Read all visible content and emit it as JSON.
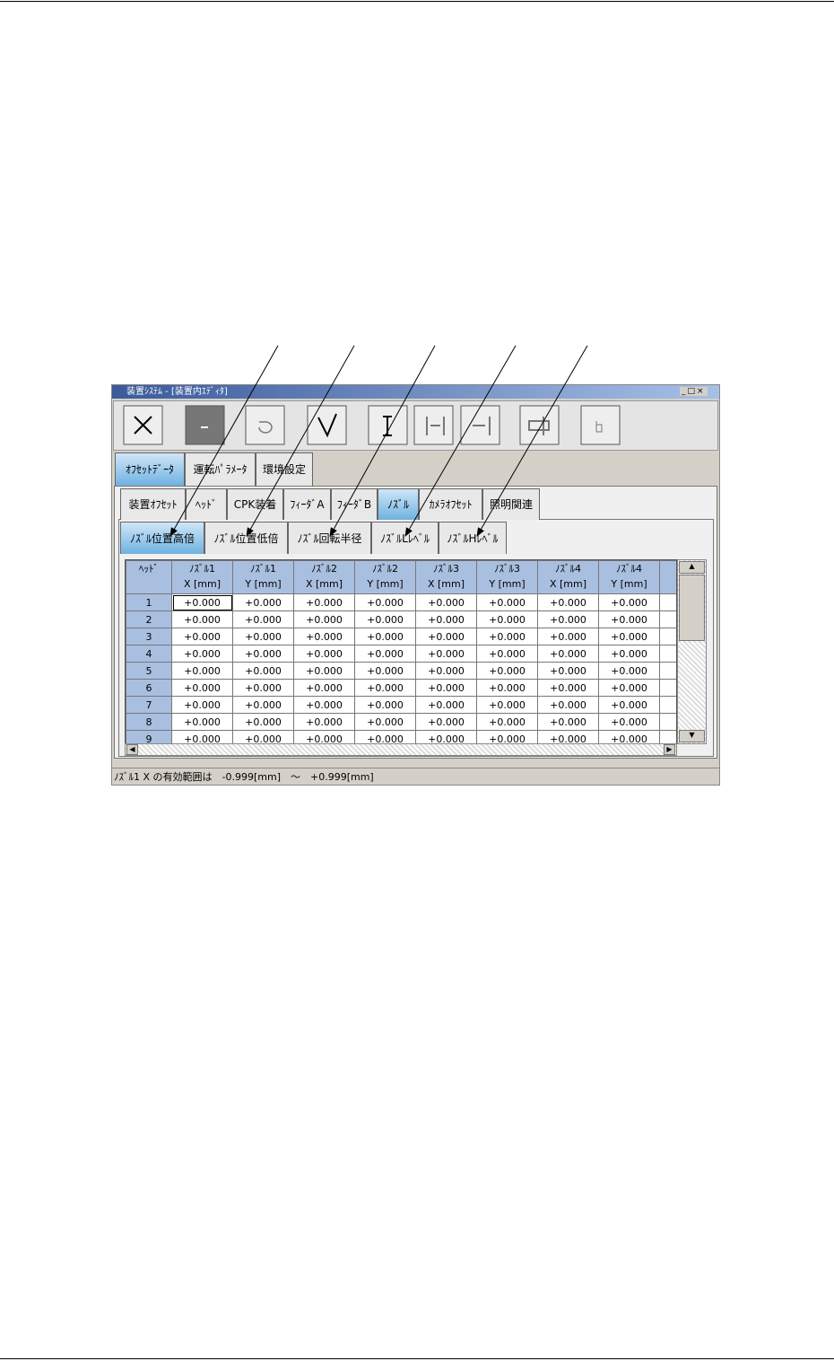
{
  "window": {
    "title": "装置ｼｽﾃﾑ - [装置内ｴﾃﾞｨﾀ]"
  },
  "tabs": {
    "level1": [
      "ｵﾌｾｯﾄﾃﾞｰﾀ",
      "運転ﾊﾟﾗﾒｰﾀ",
      "環境設定"
    ],
    "level2": [
      "装置ｵﾌｾｯﾄ",
      "ﾍｯﾄﾞ",
      "CPK装着",
      "ﾌｨｰﾀﾞA",
      "ﾌｨｰﾀﾞB",
      "ﾉｽﾞﾙ",
      "ｶﾒﾗｵﾌｾｯﾄ",
      "照明関連"
    ],
    "level3": [
      "ﾉｽﾞﾙ位置高倍",
      "ﾉｽﾞﾙ位置低倍",
      "ﾉｽﾞﾙ回転半径",
      "ﾉｽﾞﾙLﾚﾍﾞﾙ",
      "ﾉｽﾞﾙHﾚﾍﾞﾙ"
    ]
  },
  "table": {
    "header": [
      {
        "name": "ﾍｯﾄﾞ"
      },
      {
        "name": "ﾉｽﾞﾙ1",
        "unit": "X [mm]"
      },
      {
        "name": "ﾉｽﾞﾙ1",
        "unit": "Y [mm]"
      },
      {
        "name": "ﾉｽﾞﾙ2",
        "unit": "X [mm]"
      },
      {
        "name": "ﾉｽﾞﾙ2",
        "unit": "Y [mm]"
      },
      {
        "name": "ﾉｽﾞﾙ3",
        "unit": "X [mm]"
      },
      {
        "name": "ﾉｽﾞﾙ3",
        "unit": "Y [mm]"
      },
      {
        "name": "ﾉｽﾞﾙ4",
        "unit": "X [mm]"
      },
      {
        "name": "ﾉｽﾞﾙ4",
        "unit": "Y [mm]"
      }
    ],
    "rows": [
      [
        "1",
        "+0.000",
        "+0.000",
        "+0.000",
        "+0.000",
        "+0.000",
        "+0.000",
        "+0.000",
        "+0.000"
      ],
      [
        "2",
        "+0.000",
        "+0.000",
        "+0.000",
        "+0.000",
        "+0.000",
        "+0.000",
        "+0.000",
        "+0.000"
      ],
      [
        "3",
        "+0.000",
        "+0.000",
        "+0.000",
        "+0.000",
        "+0.000",
        "+0.000",
        "+0.000",
        "+0.000"
      ],
      [
        "4",
        "+0.000",
        "+0.000",
        "+0.000",
        "+0.000",
        "+0.000",
        "+0.000",
        "+0.000",
        "+0.000"
      ],
      [
        "5",
        "+0.000",
        "+0.000",
        "+0.000",
        "+0.000",
        "+0.000",
        "+0.000",
        "+0.000",
        "+0.000"
      ],
      [
        "6",
        "+0.000",
        "+0.000",
        "+0.000",
        "+0.000",
        "+0.000",
        "+0.000",
        "+0.000",
        "+0.000"
      ],
      [
        "7",
        "+0.000",
        "+0.000",
        "+0.000",
        "+0.000",
        "+0.000",
        "+0.000",
        "+0.000",
        "+0.000"
      ],
      [
        "8",
        "+0.000",
        "+0.000",
        "+0.000",
        "+0.000",
        "+0.000",
        "+0.000",
        "+0.000",
        "+0.000"
      ],
      [
        "9",
        "+0.000",
        "+0.000",
        "+0.000",
        "+0.000",
        "+0.000",
        "+0.000",
        "+0.000",
        "+0.000"
      ]
    ]
  },
  "status": "ﾉｽﾞﾙ1 X の有効範囲は　-0.999[mm]　～　+0.999[mm]"
}
